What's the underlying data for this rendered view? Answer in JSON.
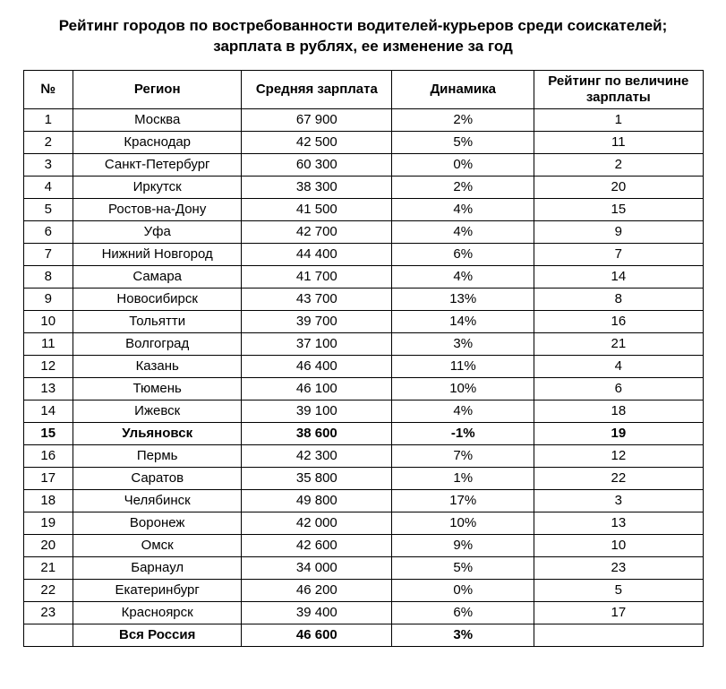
{
  "title_line1": "Рейтинг городов по востребованности водителей-курьеров среди соискателей;",
  "title_line2": "зарплата в рублях, ее изменение за год",
  "table": {
    "columns": {
      "num": "№",
      "region": "Регион",
      "salary": "Средняя зарплата",
      "dynamics": "Динамика",
      "rank": "Рейтинг по величине зарплаты"
    },
    "rows": [
      {
        "num": "1",
        "region": "Москва",
        "salary": "67 900",
        "dynamics": "2%",
        "rank": "1",
        "bold": false
      },
      {
        "num": "2",
        "region": "Краснодар",
        "salary": "42 500",
        "dynamics": "5%",
        "rank": "11",
        "bold": false
      },
      {
        "num": "3",
        "region": "Санкт-Петербург",
        "salary": "60 300",
        "dynamics": "0%",
        "rank": "2",
        "bold": false
      },
      {
        "num": "4",
        "region": "Иркутск",
        "salary": "38 300",
        "dynamics": "2%",
        "rank": "20",
        "bold": false
      },
      {
        "num": "5",
        "region": "Ростов-на-Дону",
        "salary": "41 500",
        "dynamics": "4%",
        "rank": "15",
        "bold": false
      },
      {
        "num": "6",
        "region": "Уфа",
        "salary": "42 700",
        "dynamics": "4%",
        "rank": "9",
        "bold": false
      },
      {
        "num": "7",
        "region": "Нижний Новгород",
        "salary": "44 400",
        "dynamics": "6%",
        "rank": "7",
        "bold": false
      },
      {
        "num": "8",
        "region": "Самара",
        "salary": "41 700",
        "dynamics": "4%",
        "rank": "14",
        "bold": false
      },
      {
        "num": "9",
        "region": "Новосибирск",
        "salary": "43 700",
        "dynamics": "13%",
        "rank": "8",
        "bold": false
      },
      {
        "num": "10",
        "region": "Тольятти",
        "salary": "39 700",
        "dynamics": "14%",
        "rank": "16",
        "bold": false
      },
      {
        "num": "11",
        "region": "Волгоград",
        "salary": "37 100",
        "dynamics": "3%",
        "rank": "21",
        "bold": false
      },
      {
        "num": "12",
        "region": "Казань",
        "salary": "46 400",
        "dynamics": "11%",
        "rank": "4",
        "bold": false
      },
      {
        "num": "13",
        "region": "Тюмень",
        "salary": "46 100",
        "dynamics": "10%",
        "rank": "6",
        "bold": false
      },
      {
        "num": "14",
        "region": "Ижевск",
        "salary": "39 100",
        "dynamics": "4%",
        "rank": "18",
        "bold": false
      },
      {
        "num": "15",
        "region": "Ульяновск",
        "salary": "38 600",
        "dynamics": "-1%",
        "rank": "19",
        "bold": true
      },
      {
        "num": "16",
        "region": "Пермь",
        "salary": "42 300",
        "dynamics": "7%",
        "rank": "12",
        "bold": false
      },
      {
        "num": "17",
        "region": "Саратов",
        "salary": "35 800",
        "dynamics": "1%",
        "rank": "22",
        "bold": false
      },
      {
        "num": "18",
        "region": "Челябинск",
        "salary": "49 800",
        "dynamics": "17%",
        "rank": "3",
        "bold": false
      },
      {
        "num": "19",
        "region": "Воронеж",
        "salary": "42 000",
        "dynamics": "10%",
        "rank": "13",
        "bold": false
      },
      {
        "num": "20",
        "region": "Омск",
        "salary": "42 600",
        "dynamics": "9%",
        "rank": "10",
        "bold": false
      },
      {
        "num": "21",
        "region": "Барнаул",
        "salary": "34 000",
        "dynamics": "5%",
        "rank": "23",
        "bold": false
      },
      {
        "num": "22",
        "region": "Екатеринбург",
        "salary": "46 200",
        "dynamics": "0%",
        "rank": "5",
        "bold": false
      },
      {
        "num": "23",
        "region": "Красноярск",
        "salary": "39 400",
        "dynamics": "6%",
        "rank": "17",
        "bold": false
      },
      {
        "num": "",
        "region": "Вся Россия",
        "salary": "46 600",
        "dynamics": "3%",
        "rank": "",
        "bold": true
      }
    ],
    "col_widths": {
      "num": 44,
      "region": 180,
      "salary": 160,
      "dynamics": 150,
      "rank": 180
    },
    "border_color": "#000000",
    "background_color": "#ffffff",
    "font_size": 15,
    "header_font_size": 15,
    "title_font_size": 17
  }
}
